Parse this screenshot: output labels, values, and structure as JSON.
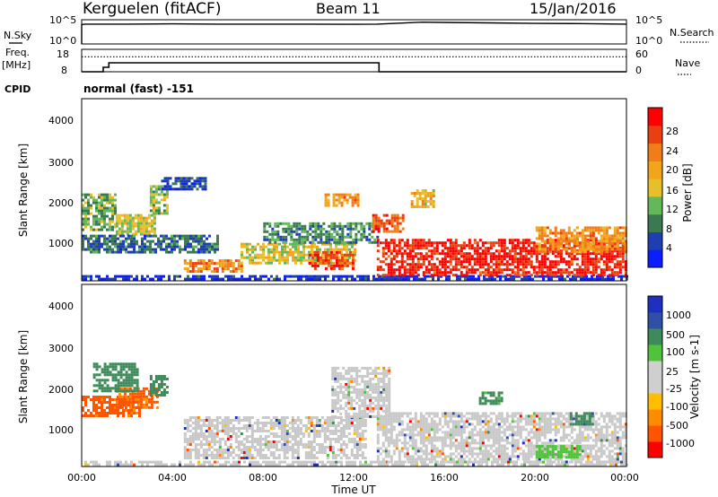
{
  "header": {
    "station": "Kerguelen (fitACF)",
    "beam": "Beam 11",
    "date": "15/Jan/2016"
  },
  "noise_panel": {
    "left_label": "N.Sky",
    "right_label": "N.Search",
    "left_ticks": [
      "10^5",
      "10^0"
    ],
    "right_ticks": [
      "10^5",
      "10^0"
    ]
  },
  "freq_panel": {
    "left_label_top": "Freq.",
    "left_label_unit": "[MHz]",
    "left_ticks": [
      "18",
      "8"
    ],
    "right_label": "Nave",
    "right_ticks": [
      "60",
      "0"
    ]
  },
  "cpid": {
    "label": "CPID",
    "text": "normal (fast) -151"
  },
  "colors": {
    "power": [
      "#0a1eff",
      "#1f3fb0",
      "#3b7a50",
      "#63b85a",
      "#e6c02a",
      "#f2a41b",
      "#f07d18",
      "#e84012",
      "#ff0000"
    ],
    "velocity": [
      "#ff0000",
      "#ff5500",
      "#ff8c00",
      "#ffbf00",
      "#cfcfcf",
      "#cfcfcf",
      "#4fc43a",
      "#3f8a5a",
      "#3050a8",
      "#1f2fbf"
    ],
    "ground": "#c8c8c8"
  },
  "chart_data": [
    {
      "type": "line",
      "title": "",
      "series": [
        {
          "name": "N.Sky",
          "x": [
            0,
            0.15,
            2,
            4,
            6,
            8,
            10,
            12,
            13,
            14,
            15,
            16,
            18,
            20,
            22,
            24
          ],
          "y_log10": [
            4.0,
            4.1,
            4.1,
            4.15,
            4.1,
            4.1,
            4.1,
            4.05,
            4.1,
            4.3,
            4.5,
            4.45,
            4.35,
            4.25,
            4.2,
            4.1
          ]
        }
      ],
      "xlim": [
        0,
        24
      ],
      "ylim_log10": [
        0,
        5
      ],
      "ylabel": "N.Sky",
      "y2label": "N.Search"
    },
    {
      "type": "line",
      "series": [
        {
          "name": "Freq.",
          "x": [
            0,
            0.95,
            0.95,
            1.2,
            1.2,
            13.1,
            13.1,
            24
          ],
          "y": [
            8,
            8,
            10,
            10,
            12,
            12,
            8,
            8
          ]
        },
        {
          "name": "Nave",
          "x": [
            0,
            24
          ],
          "y": [
            40,
            40
          ]
        }
      ],
      "xlim": [
        0,
        24
      ],
      "ylim": [
        8,
        18
      ],
      "y2lim": [
        0,
        60
      ],
      "ylabel": "Freq. [MHz]",
      "y2label": "Nave"
    },
    {
      "type": "heatmap",
      "quantity": "Power",
      "ylabel": "Slant Range [km]",
      "yticks": [
        "4000",
        "3000",
        "2000",
        "1000"
      ],
      "ylim": [
        180,
        4600
      ],
      "xlim": [
        0,
        24
      ],
      "colorbar": {
        "label": "Power [dB]",
        "ticks": [
          "28",
          "24",
          "20",
          "16",
          "12",
          "8",
          "4"
        ],
        "range": [
          0,
          30
        ]
      },
      "regions": [
        {
          "x": [
            0,
            24
          ],
          "y": [
            200,
            320
          ],
          "value": 3
        },
        {
          "x": [
            0,
            1.5
          ],
          "y": [
            1400,
            2300
          ],
          "value": 11
        },
        {
          "x": [
            1.5,
            3.2
          ],
          "y": [
            1300,
            1800
          ],
          "value": 14
        },
        {
          "x": [
            3.0,
            3.8
          ],
          "y": [
            1800,
            2500
          ],
          "value": 13
        },
        {
          "x": [
            3.5,
            5.5
          ],
          "y": [
            2400,
            2700
          ],
          "value": 5
        },
        {
          "x": [
            0,
            6
          ],
          "y": [
            900,
            1300
          ],
          "value": 7
        },
        {
          "x": [
            4.5,
            7
          ],
          "y": [
            400,
            700
          ],
          "value": 22
        },
        {
          "x": [
            7,
            12
          ],
          "y": [
            600,
            1100
          ],
          "value": 15
        },
        {
          "x": [
            10,
            12
          ],
          "y": [
            500,
            900
          ],
          "value": 25
        },
        {
          "x": [
            8,
            13
          ],
          "y": [
            1100,
            1600
          ],
          "value": 9
        },
        {
          "x": [
            10.7,
            12.2
          ],
          "y": [
            2000,
            2300
          ],
          "value": 20
        },
        {
          "x": [
            12.8,
            14.2
          ],
          "y": [
            1400,
            1800
          ],
          "value": 24
        },
        {
          "x": [
            14.5,
            15.5
          ],
          "y": [
            2000,
            2400
          ],
          "value": 17
        },
        {
          "x": [
            13,
            24
          ],
          "y": [
            300,
            1200
          ],
          "value": 27
        },
        {
          "x": [
            20,
            24
          ],
          "y": [
            900,
            1500
          ],
          "value": 20
        }
      ]
    },
    {
      "type": "heatmap",
      "quantity": "Velocity",
      "ylabel": "Slant Range [km]",
      "yticks": [
        "4000",
        "3000",
        "2000",
        "1000"
      ],
      "ylim": [
        180,
        4600
      ],
      "xlim": [
        0,
        24
      ],
      "xlabel": "Time UT",
      "xticks": [
        "00:00",
        "04:00",
        "08:00",
        "12:00",
        "16:00",
        "20:00",
        "00:00"
      ],
      "colorbar": {
        "label": "Velocity [m s-1]",
        "ticks": [
          "1000",
          "500",
          "100",
          "25",
          "-25",
          "-100",
          "-500",
          "-1000"
        ],
        "range": [
          -1000,
          1000
        ]
      },
      "regions": [
        {
          "x": [
            0,
            2.5
          ],
          "y": [
            1400,
            1900
          ],
          "value": -150
        },
        {
          "x": [
            1.5,
            3.3
          ],
          "y": [
            1600,
            2100
          ],
          "value": -120
        },
        {
          "x": [
            0.5,
            2.5
          ],
          "y": [
            2000,
            2700
          ],
          "value": 200
        },
        {
          "x": [
            3,
            3.8
          ],
          "y": [
            1900,
            2400
          ],
          "value": 300
        },
        {
          "x": [
            4.5,
            12.5
          ],
          "y": [
            400,
            1400
          ],
          "value": 0
        },
        {
          "x": [
            11,
            13.5
          ],
          "y": [
            1400,
            2600
          ],
          "value": 0
        },
        {
          "x": [
            13,
            24
          ],
          "y": [
            300,
            1500
          ],
          "value": 0
        },
        {
          "x": [
            21.5,
            22.5
          ],
          "y": [
            1200,
            1500
          ],
          "value": 400
        },
        {
          "x": [
            17.5,
            18.5
          ],
          "y": [
            1700,
            2000
          ],
          "value": 150
        },
        {
          "x": [
            20,
            22
          ],
          "y": [
            400,
            700
          ],
          "value": 60
        },
        {
          "x": [
            0,
            24
          ],
          "y": [
            200,
            320
          ],
          "value": 0
        }
      ]
    }
  ]
}
